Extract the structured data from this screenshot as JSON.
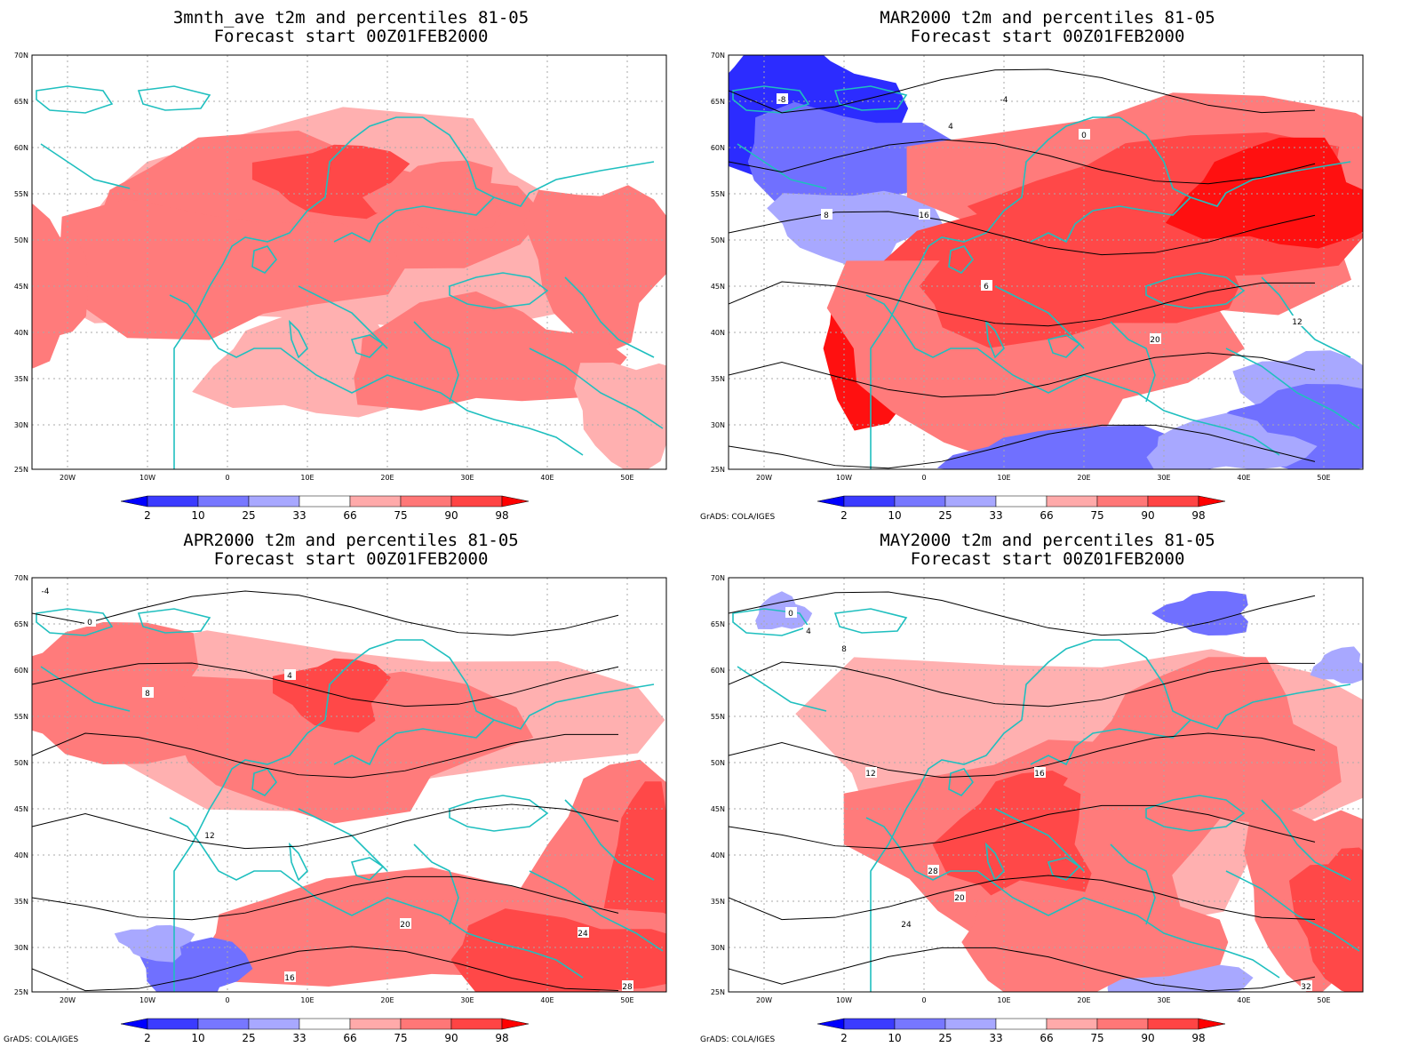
{
  "panels": [
    {
      "id": "p1",
      "title_line1": "3mnth_ave t2m and percentiles 81-05",
      "title_line2": "Forecast start 00Z01FEB2000",
      "credit": ""
    },
    {
      "id": "p2",
      "title_line1": "MAR2000 t2m and percentiles 81-05",
      "title_line2": "Forecast start 00Z01FEB2000",
      "credit": "GrADS: COLA/IGES"
    },
    {
      "id": "p3",
      "title_line1": "APR2000 t2m and percentiles 81-05",
      "title_line2": "Forecast start 00Z01FEB2000",
      "credit": "GrADS: COLA/IGES"
    },
    {
      "id": "p4",
      "title_line1": "MAY2000 t2m and percentiles 81-05",
      "title_line2": "Forecast start 00Z01FEB2000",
      "credit": "GrADS: COLA/IGES"
    }
  ],
  "lat_labels": [
    "70N",
    "65N",
    "60N",
    "55N",
    "50N",
    "45N",
    "40N",
    "35N",
    "30N",
    "25N"
  ],
  "lon_labels": [
    "20W",
    "10W",
    "0",
    "10E",
    "20E",
    "30E",
    "40E",
    "50E"
  ],
  "colorbar": {
    "labels": [
      "2",
      "10",
      "25",
      "33",
      "66",
      "75",
      "90",
      "98"
    ],
    "colors": [
      "#0000ff",
      "#3b3bff",
      "#7777ff",
      "#a8a8ff",
      "#ffffff",
      "#ffaaaa",
      "#ff7777",
      "#ff4444",
      "#ff0000"
    ]
  },
  "colors": {
    "coast": "#1fbfbf",
    "grid": "#aaaaaa",
    "contour": "#000000",
    "red1": "#ffb0b0",
    "red2": "#ff7b7b",
    "red3": "#ff4848",
    "red4": "#ff1010",
    "blue1": "#a8a8ff",
    "blue2": "#7070ff",
    "blue3": "#2c2cff"
  },
  "contour_labels": {
    "p2": [
      "4",
      "0",
      "-4",
      "8",
      "12",
      "16",
      "20",
      "-8",
      "6"
    ],
    "p3": [
      "0",
      "4",
      "8",
      "12",
      "16",
      "20",
      "24",
      "28",
      "-4"
    ],
    "p4": [
      "0",
      "4",
      "8",
      "12",
      "16",
      "20",
      "24",
      "28",
      "32"
    ]
  }
}
